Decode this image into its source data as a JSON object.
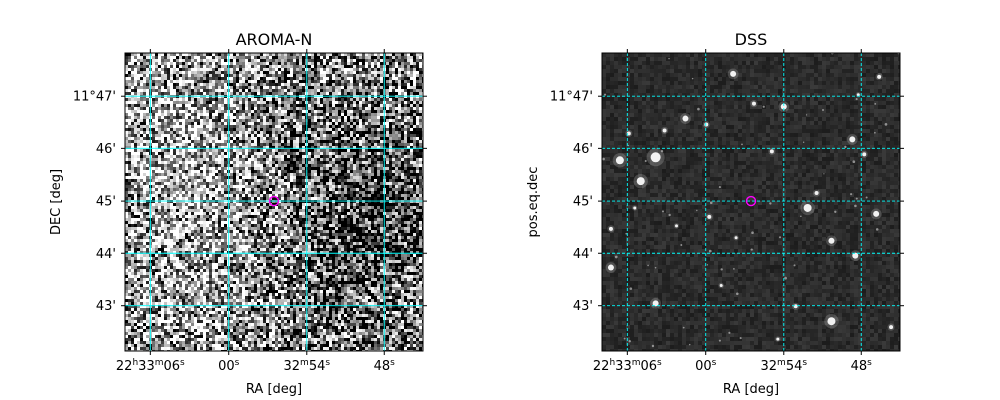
{
  "chart_data": [
    {
      "type": "heatmap",
      "title": "AROMA-N",
      "xlabel": "RA [deg]",
      "ylabel": "DEC [deg]",
      "x_ticks": [
        {
          "h": "22",
          "m": "33",
          "s": "06",
          "full": true
        },
        {
          "s": "00",
          "full": false
        },
        {
          "m": "32",
          "s": "54",
          "full": true
        },
        {
          "s": "48",
          "full": false
        }
      ],
      "y_ticks": [
        "11°47'",
        "46'",
        "45'",
        "44'",
        "43'"
      ],
      "grid": true,
      "grid_color": "#00ffff",
      "marker_color": "#ff00ff",
      "image_style": "noisy"
    },
    {
      "type": "heatmap",
      "title": "DSS",
      "xlabel": "RA [deg]",
      "ylabel": "pos.eq.dec",
      "x_ticks": [
        {
          "h": "22",
          "m": "33",
          "s": "06",
          "full": true
        },
        {
          "s": "00",
          "full": false
        },
        {
          "m": "32",
          "s": "54",
          "full": true
        },
        {
          "s": "48",
          "full": false
        }
      ],
      "y_ticks": [
        "11°47'",
        "46'",
        "45'",
        "44'",
        "43'"
      ],
      "grid": true,
      "grid_color": "#00ffff",
      "marker_color": "#ff00ff",
      "image_style": "starfield"
    }
  ]
}
